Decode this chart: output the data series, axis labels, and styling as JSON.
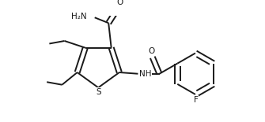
{
  "background": "#ffffff",
  "line_color": "#1a1a1a",
  "line_width": 1.4,
  "font_size": 7.5,
  "xlim": [
    0,
    335
  ],
  "ylim": [
    0,
    155
  ]
}
